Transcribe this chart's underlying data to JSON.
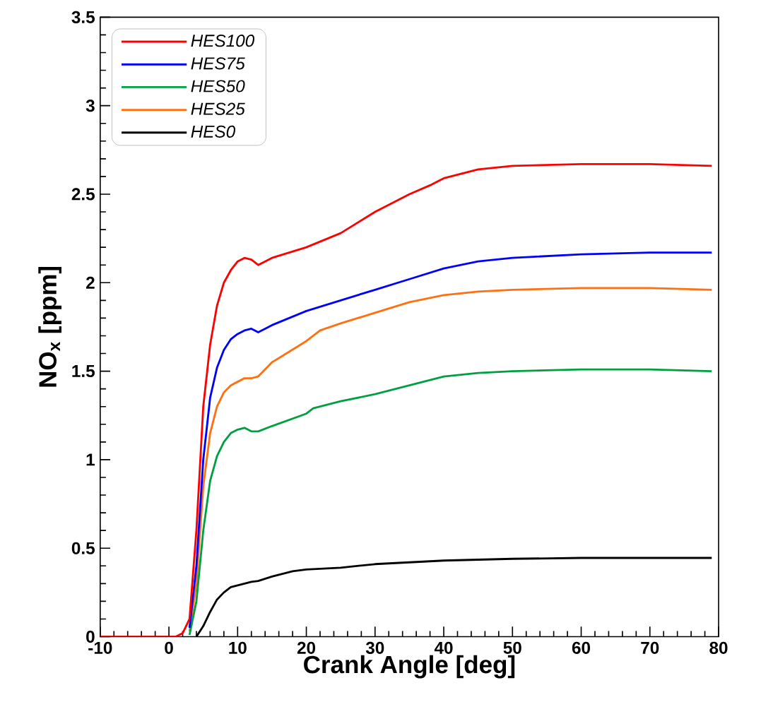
{
  "chart_data": {
    "type": "line",
    "xlabel": "Crank Angle [deg]",
    "ylabel": "NO$_{x}$ [ppm]",
    "xlim": [
      -10,
      80
    ],
    "xticks": [
      -10,
      0,
      10,
      20,
      30,
      40,
      50,
      60,
      70,
      80
    ],
    "ylim": [
      0,
      3.5
    ],
    "yticks": [
      0,
      0.5,
      1,
      1.5,
      2,
      2.5,
      3,
      3.5
    ],
    "grid": false,
    "legend": "top left",
    "marker": "none",
    "line_style": "solid",
    "series": [
      {
        "name": "HES100",
        "color": "#ff0000",
        "x": [
          -10,
          0,
          1,
          2,
          3,
          4,
          5,
          6,
          7,
          8,
          9,
          10,
          11,
          12,
          13,
          15,
          20,
          25,
          30,
          35,
          38,
          40,
          45,
          50,
          60,
          70,
          79
        ],
        "values": [
          0,
          0,
          0,
          0.02,
          0.1,
          0.6,
          1.3,
          1.65,
          1.87,
          2.0,
          2.07,
          2.12,
          2.14,
          2.13,
          2.1,
          2.14,
          2.2,
          2.28,
          2.4,
          2.5,
          2.55,
          2.59,
          2.64,
          2.66,
          2.67,
          2.67,
          2.66
        ]
      },
      {
        "name": "HES75",
        "color": "#0000ff",
        "x": [
          3,
          4,
          5,
          6,
          7,
          8,
          9,
          10,
          11,
          12,
          13,
          15,
          20,
          25,
          30,
          35,
          40,
          45,
          50,
          60,
          70,
          79
        ],
        "values": [
          0.05,
          0.4,
          1.0,
          1.35,
          1.52,
          1.62,
          1.68,
          1.71,
          1.73,
          1.74,
          1.72,
          1.76,
          1.84,
          1.9,
          1.96,
          2.02,
          2.08,
          2.12,
          2.14,
          2.16,
          2.17,
          2.17
        ]
      },
      {
        "name": "HES50",
        "color": "#00a040",
        "x": [
          3,
          4,
          5,
          6,
          7,
          8,
          9,
          10,
          11,
          12,
          13,
          15,
          20,
          21,
          25,
          30,
          35,
          40,
          45,
          50,
          60,
          70,
          79
        ],
        "values": [
          0.01,
          0.2,
          0.6,
          0.88,
          1.02,
          1.1,
          1.15,
          1.17,
          1.18,
          1.16,
          1.16,
          1.19,
          1.26,
          1.29,
          1.33,
          1.37,
          1.42,
          1.47,
          1.49,
          1.5,
          1.51,
          1.51,
          1.5
        ]
      },
      {
        "name": "HES25",
        "color": "#ff7010",
        "x": [
          3,
          4,
          5,
          6,
          7,
          8,
          9,
          10,
          11,
          12,
          13,
          15,
          20,
          22,
          25,
          30,
          35,
          40,
          45,
          50,
          60,
          70,
          79
        ],
        "values": [
          0.03,
          0.3,
          0.85,
          1.15,
          1.3,
          1.38,
          1.42,
          1.44,
          1.46,
          1.46,
          1.47,
          1.55,
          1.67,
          1.73,
          1.77,
          1.83,
          1.89,
          1.93,
          1.95,
          1.96,
          1.97,
          1.97,
          1.96
        ]
      },
      {
        "name": "HES0",
        "color": "#000000",
        "x": [
          4,
          5,
          6,
          7,
          8,
          9,
          10,
          12,
          13,
          15,
          18,
          20,
          25,
          30,
          40,
          50,
          60,
          70,
          79
        ],
        "values": [
          0,
          0.06,
          0.14,
          0.21,
          0.25,
          0.28,
          0.29,
          0.31,
          0.315,
          0.34,
          0.37,
          0.38,
          0.39,
          0.41,
          0.43,
          0.44,
          0.445,
          0.445,
          0.445
        ]
      }
    ]
  }
}
